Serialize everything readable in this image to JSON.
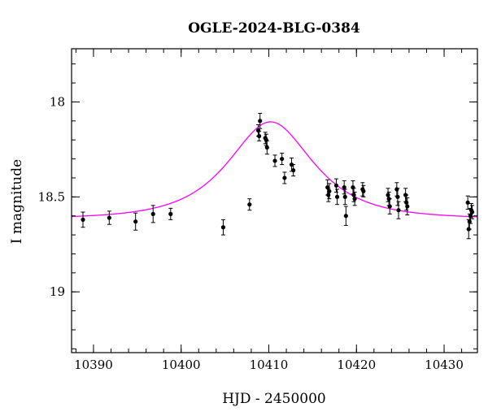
{
  "chart_data": {
    "type": "scatter",
    "title": "OGLE-2024-BLG-0384",
    "xlabel": "HJD - 2450000",
    "ylabel": "I magnitude",
    "xlim": [
      10387.5,
      10433.8
    ],
    "ylim": [
      19.32,
      17.72
    ],
    "y_inverted": true,
    "xticks": [
      10390,
      10400,
      10410,
      10420,
      10430
    ],
    "yticks": [
      18,
      18.5,
      19
    ],
    "ytick_labels": [
      "18",
      "18.5",
      "19"
    ],
    "x_minor_step": 2,
    "y_minor_step": 0.1,
    "grid": false,
    "colors": {
      "points": "#000000",
      "model": "#ff00ff",
      "frame": "#000000"
    },
    "series": [
      {
        "kind": "points-with-errorbars",
        "x": [
          10388.8,
          10391.8,
          10394.8,
          10396.8,
          10398.8,
          10404.8,
          10407.8,
          10408.8,
          10408.9,
          10409.0,
          10409.6,
          10409.7,
          10409.8,
          10410.7,
          10411.5,
          10411.8,
          10412.6,
          10412.8,
          10416.7,
          10416.8,
          10416.9,
          10417.7,
          10417.8,
          10418.6,
          10418.7,
          10418.8,
          10419.6,
          10419.7,
          10419.8,
          10420.7,
          10420.8,
          10423.6,
          10423.7,
          10423.8,
          10424.6,
          10424.7,
          10424.8,
          10425.6,
          10425.7,
          10425.8,
          10432.7,
          10432.8,
          10432.9,
          10433.0,
          10433.1,
          10433.2
        ],
        "y": [
          18.62,
          18.61,
          18.63,
          18.59,
          18.59,
          18.66,
          18.54,
          18.15,
          18.18,
          18.1,
          18.19,
          18.2,
          18.24,
          18.31,
          18.3,
          18.4,
          18.33,
          18.36,
          18.45,
          18.49,
          18.47,
          18.44,
          18.5,
          18.45,
          18.5,
          18.6,
          18.45,
          18.49,
          18.51,
          18.46,
          18.47,
          18.49,
          18.51,
          18.55,
          18.46,
          18.5,
          18.57,
          18.49,
          18.53,
          18.55,
          18.53,
          18.67,
          18.63,
          18.6,
          18.57,
          18.58
        ],
        "yerr": [
          0.04,
          0.035,
          0.045,
          0.045,
          0.03,
          0.04,
          0.03,
          0.03,
          0.025,
          0.04,
          0.03,
          0.03,
          0.035,
          0.03,
          0.03,
          0.03,
          0.035,
          0.03,
          0.04,
          0.035,
          0.04,
          0.035,
          0.04,
          0.035,
          0.04,
          0.05,
          0.035,
          0.035,
          0.035,
          0.035,
          0.03,
          0.035,
          0.035,
          0.04,
          0.035,
          0.045,
          0.045,
          0.035,
          0.04,
          0.045,
          0.035,
          0.05,
          0.04,
          0.04,
          0.035,
          0.035
        ]
      },
      {
        "kind": "model-curve",
        "baseline": 18.615,
        "u0": 0.75,
        "t0": 10410.2,
        "tE": 6.8
      }
    ]
  }
}
